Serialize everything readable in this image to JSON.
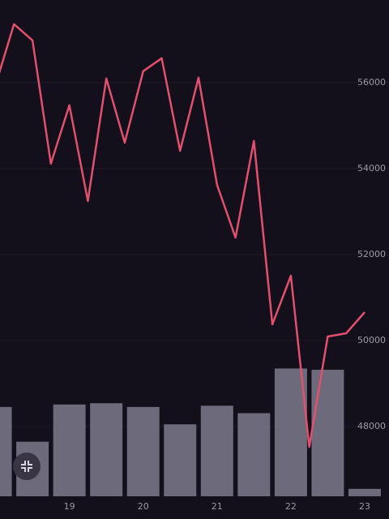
{
  "chart_data": {
    "type": "line",
    "x": [
      18,
      18.25,
      18.5,
      18.75,
      19,
      19.25,
      19.5,
      19.75,
      20,
      20.25,
      20.5,
      20.75,
      21,
      21.25,
      21.5,
      21.75,
      22,
      22.25,
      22.5,
      22.75,
      23
    ],
    "values": [
      55943,
      57358,
      56981,
      54113,
      55472,
      53245,
      56094,
      54604,
      56264,
      56566,
      54415,
      56113,
      53623,
      52396,
      54642,
      50377,
      51509,
      47528,
      50094,
      50170,
      50660
    ],
    "color": "#e1506f",
    "volume": {
      "x": [
        18,
        18.5,
        19,
        19.5,
        20,
        20.5,
        21,
        21.5,
        22,
        22.5,
        23
      ],
      "values": [
        72,
        44,
        74,
        75,
        72,
        58,
        73,
        67,
        103,
        102,
        6
      ],
      "color": "#6d6a7b"
    },
    "y2lim": [
      0,
      400
    ],
    "xlim": [
      18.06,
      23.22
    ],
    "xticks": [
      19,
      20,
      21,
      22,
      23
    ],
    "ylim": [
      46380,
      57920
    ],
    "yticks": [
      48000,
      50000,
      52000,
      54000,
      56000
    ],
    "grid": true
  }
}
